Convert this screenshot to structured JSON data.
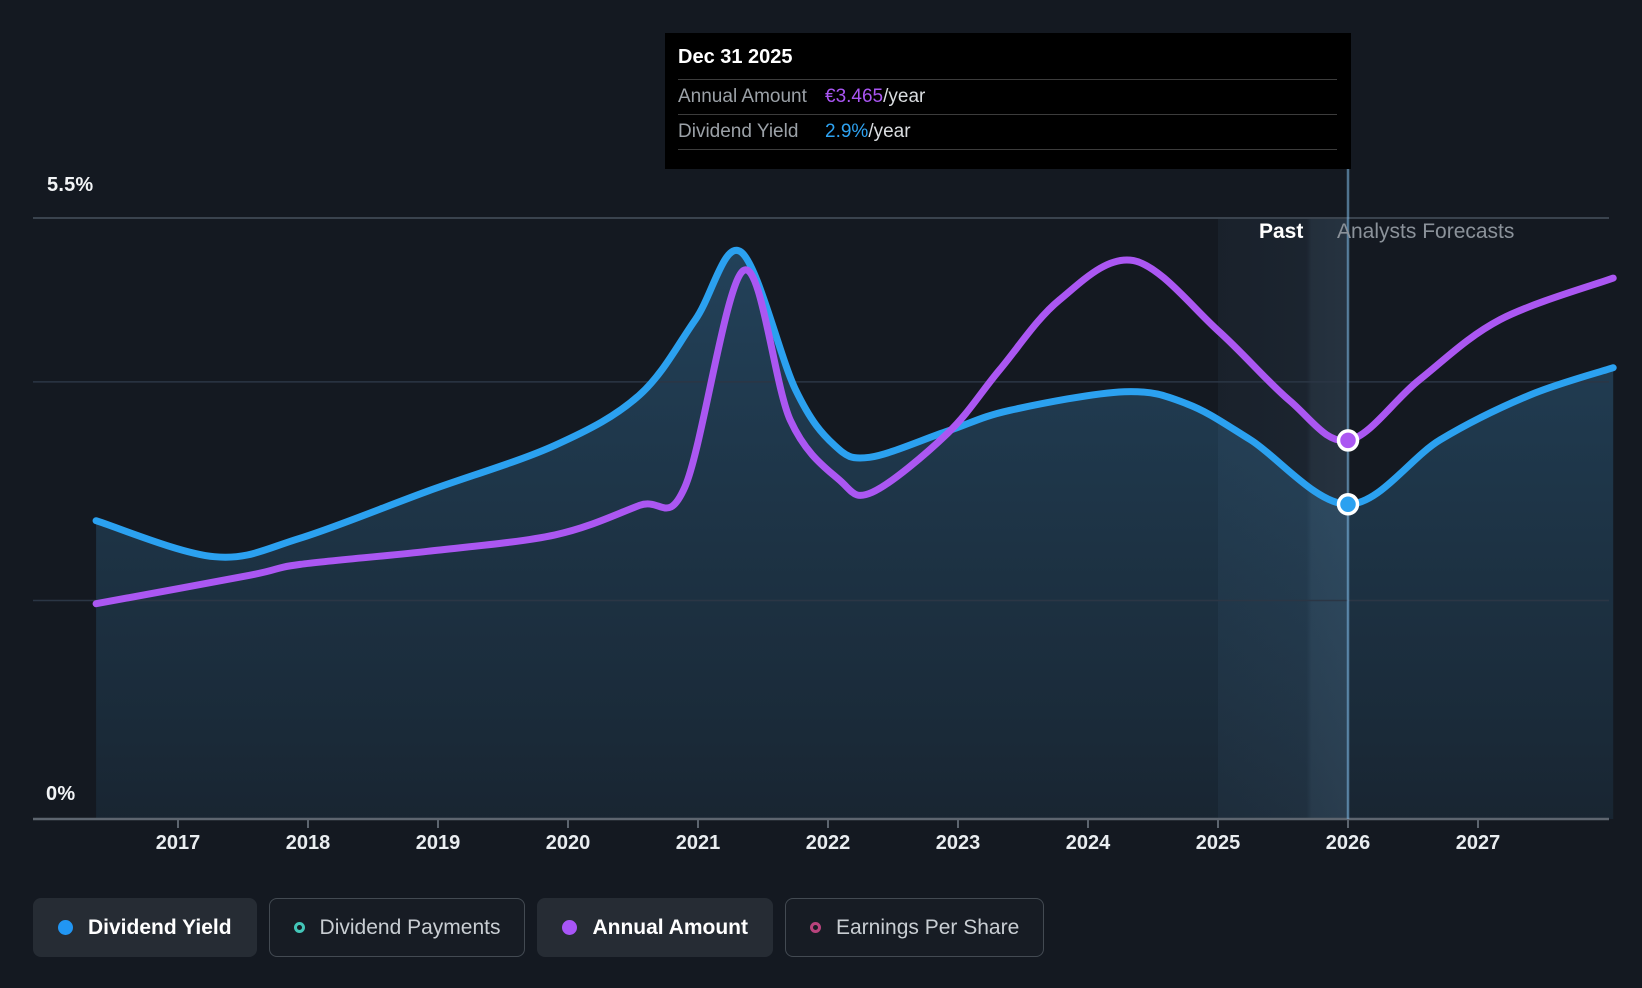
{
  "tooltip": {
    "date": "Dec 31 2025",
    "rows": [
      {
        "label": "Annual Amount",
        "value": "€3.465",
        "suffix": "/year",
        "color": "#a955f2"
      },
      {
        "label": "Dividend Yield",
        "value": "2.9%",
        "suffix": "/year",
        "color": "#2ea3f2"
      }
    ]
  },
  "annotations": {
    "past": "Past",
    "forecast": "Analysts Forecasts"
  },
  "legend": [
    {
      "label": "Dividend Yield",
      "color": "#2196f3",
      "style": "filled",
      "active": true
    },
    {
      "label": "Dividend Payments",
      "color": "#43c6b8",
      "style": "ring",
      "active": false
    },
    {
      "label": "Annual Amount",
      "color": "#a855f7",
      "style": "filled",
      "active": true
    },
    {
      "label": "Earnings Per Share",
      "color": "#b8437c",
      "style": "ring",
      "active": false
    }
  ],
  "chart_data": {
    "type": "line",
    "x_ticks": [
      2017,
      2018,
      2019,
      2020,
      2021,
      2022,
      2023,
      2024,
      2025,
      2026,
      2027
    ],
    "xlim": [
      2016.37,
      2028.04
    ],
    "ylim": [
      0,
      5.5
    ],
    "ylabels": {
      "top": "5.5%",
      "bottom": "0%"
    },
    "gridlines_pct": [
      0,
      2,
      4,
      5.5
    ],
    "past_band": [
      2025.0,
      2026.0
    ],
    "divider_year": 2026.0,
    "legend_position": "bottom",
    "series": [
      {
        "name": "Dividend Yield",
        "unit": "%",
        "color": "#2ba1f0",
        "area_fill": true,
        "marker": {
          "x": 2026.0,
          "y": 2.88
        },
        "points": [
          [
            2016.37,
            2.73
          ],
          [
            2017.28,
            2.4
          ],
          [
            2017.94,
            2.57
          ],
          [
            2018.92,
            3.0
          ],
          [
            2019.9,
            3.42
          ],
          [
            2020.55,
            3.88
          ],
          [
            2020.98,
            4.57
          ],
          [
            2021.33,
            5.19
          ],
          [
            2021.75,
            3.93
          ],
          [
            2022.05,
            3.42
          ],
          [
            2022.32,
            3.31
          ],
          [
            2022.92,
            3.55
          ],
          [
            2023.4,
            3.74
          ],
          [
            2024.28,
            3.91
          ],
          [
            2024.76,
            3.8
          ],
          [
            2025.25,
            3.47
          ],
          [
            2026.0,
            2.88
          ],
          [
            2026.71,
            3.47
          ],
          [
            2027.4,
            3.88
          ],
          [
            2028.04,
            4.13
          ]
        ]
      },
      {
        "name": "Annual Amount",
        "unit": "EUR/year",
        "color": "#ab57f2",
        "area_fill": false,
        "marker": {
          "x": 2026.0,
          "y": 3.465
        },
        "points": [
          [
            2016.37,
            1.97
          ],
          [
            2017.55,
            2.23
          ],
          [
            2017.94,
            2.33
          ],
          [
            2018.92,
            2.45
          ],
          [
            2019.9,
            2.6
          ],
          [
            2020.55,
            2.87
          ],
          [
            2020.9,
            3.04
          ],
          [
            2021.35,
            5.02
          ],
          [
            2021.71,
            3.65
          ],
          [
            2022.09,
            3.1
          ],
          [
            2022.34,
            2.99
          ],
          [
            2022.92,
            3.53
          ],
          [
            2023.32,
            4.11
          ],
          [
            2023.78,
            4.75
          ],
          [
            2024.35,
            5.11
          ],
          [
            2025.0,
            4.47
          ],
          [
            2025.55,
            3.83
          ],
          [
            2026.0,
            3.465
          ],
          [
            2026.55,
            4.02
          ],
          [
            2027.17,
            4.57
          ],
          [
            2028.04,
            4.95
          ]
        ]
      }
    ]
  }
}
